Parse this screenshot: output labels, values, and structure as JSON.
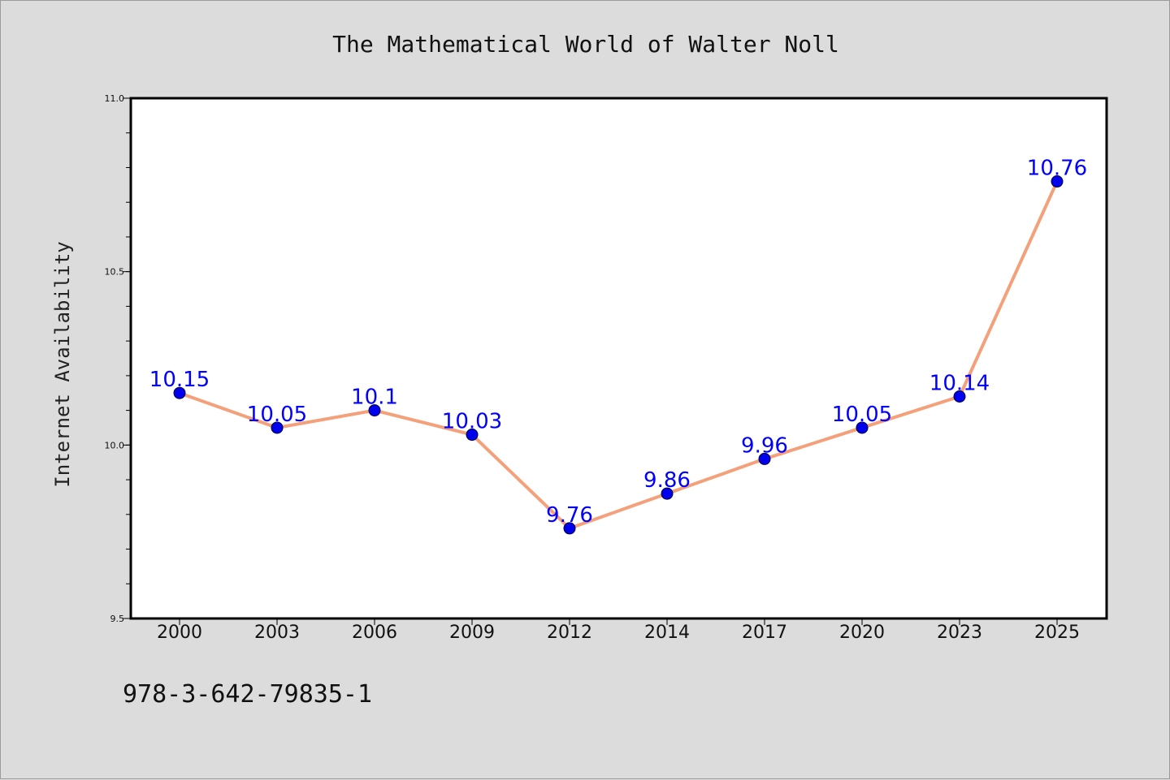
{
  "chart_data": {
    "type": "line",
    "title": "The Mathematical World of Walter Noll",
    "xlabel": "",
    "ylabel": "Internet Availability",
    "categories": [
      "2000",
      "2003",
      "2006",
      "2009",
      "2012",
      "2014",
      "2017",
      "2020",
      "2023",
      "2025"
    ],
    "series": [
      {
        "values": [
          10.15,
          10.05,
          10.1,
          10.03,
          9.76,
          9.86,
          9.96,
          10.05,
          10.14,
          10.76
        ],
        "line_color": "#f4a07a",
        "marker_color": "#0000ee",
        "label_color": "#0000ff"
      }
    ],
    "data_labels": [
      "10.15",
      "10.05",
      "10.1",
      "10.03",
      "9.76",
      "9.86",
      "9.96",
      "10.05",
      "10.14",
      "10.76"
    ],
    "ylim": [
      9.5,
      11.0
    ],
    "yticks": [
      {
        "value": 9.5,
        "label": "9.5"
      },
      {
        "value": 10.0,
        "label": "10.0"
      },
      {
        "value": 10.5,
        "label": "10.5"
      },
      {
        "value": 11.0,
        "label": "11.0"
      }
    ],
    "yminor_step": 0.1,
    "grid": false,
    "legend": "none"
  },
  "footer": {
    "text": "978-3-642-79835-1"
  },
  "colors": {
    "background": "#dcdcdc",
    "plot_background": "#ffffff",
    "axis": "#000000"
  }
}
